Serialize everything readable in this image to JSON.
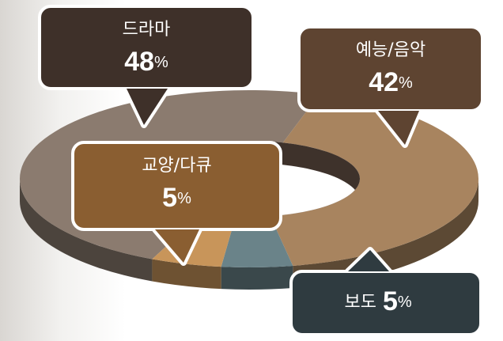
{
  "chart_data": {
    "type": "pie",
    "categories": [
      "드라마",
      "예능/음악",
      "보도",
      "교양/다큐"
    ],
    "values": [
      48,
      42,
      5,
      5
    ],
    "value_labels": [
      "48%",
      "42%",
      "5%",
      "5%"
    ],
    "colors": [
      "#8b7b6f",
      "#a8845f",
      "#6a8389",
      "#c8955a"
    ]
  }
}
